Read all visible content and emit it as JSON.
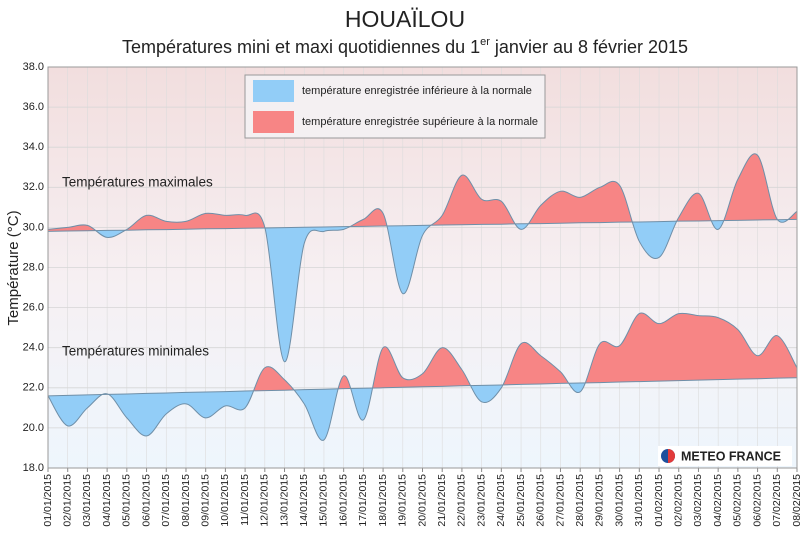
{
  "chart_data": {
    "type": "line",
    "title": "HOUAÏLOU",
    "subtitle_parts": [
      "Températures mini et maxi quotidiennes du 1",
      "er",
      " janvier au 8 février 2015"
    ],
    "y_label": "Température (°C)",
    "categories": [
      "01/01/2015",
      "02/01/2015",
      "03/01/2015",
      "04/01/2015",
      "05/01/2015",
      "06/01/2015",
      "07/01/2015",
      "08/01/2015",
      "09/01/2015",
      "10/01/2015",
      "11/01/2015",
      "12/01/2015",
      "13/01/2015",
      "14/01/2015",
      "15/01/2015",
      "16/01/2015",
      "17/01/2015",
      "18/01/2015",
      "19/01/2015",
      "20/01/2015",
      "21/01/2015",
      "22/01/2015",
      "23/01/2015",
      "24/01/2015",
      "25/01/2015",
      "26/01/2015",
      "27/01/2015",
      "28/01/2015",
      "29/01/2015",
      "30/01/2015",
      "31/01/2015",
      "01/02/2015",
      "02/02/2015",
      "03/02/2015",
      "04/02/2015",
      "05/02/2015",
      "06/02/2015",
      "07/02/2015",
      "08/02/2015"
    ],
    "series": [
      {
        "name": "Températures maximales",
        "color": "#6f8fa8",
        "values": [
          29.9,
          30.0,
          30.1,
          29.5,
          29.9,
          30.6,
          30.3,
          30.3,
          30.7,
          30.6,
          30.6,
          30.0,
          23.3,
          29.2,
          29.8,
          29.9,
          30.4,
          30.7,
          26.7,
          29.6,
          30.6,
          32.6,
          31.4,
          31.3,
          29.9,
          31.1,
          31.8,
          31.5,
          32.0,
          32.1,
          29.3,
          28.5,
          30.5,
          31.7,
          29.9,
          32.4,
          33.6,
          30.4,
          30.8
        ]
      },
      {
        "name": "Températures minimales",
        "color": "#6f8fa8",
        "values": [
          21.6,
          20.1,
          21.0,
          21.7,
          20.5,
          19.6,
          20.7,
          21.2,
          20.5,
          21.1,
          21.0,
          23.0,
          22.4,
          21.2,
          19.4,
          22.6,
          20.4,
          24.0,
          22.5,
          22.7,
          24.0,
          22.9,
          21.3,
          22.0,
          24.2,
          23.6,
          22.8,
          21.8,
          24.2,
          24.1,
          25.7,
          25.2,
          25.7,
          25.6,
          25.5,
          24.9,
          23.6,
          24.6,
          23.0
        ]
      }
    ],
    "normals": [
      {
        "values": [
          29.8,
          29.82,
          29.83,
          29.85,
          29.86,
          29.88,
          29.89,
          29.91,
          29.93,
          29.94,
          29.96,
          29.97,
          29.99,
          30.01,
          30.02,
          30.04,
          30.05,
          30.07,
          30.08,
          30.1,
          30.12,
          30.13,
          30.15,
          30.16,
          30.18,
          30.19,
          30.21,
          30.23,
          30.24,
          30.26,
          30.27,
          30.29,
          30.31,
          30.32,
          30.34,
          30.35,
          30.37,
          30.38,
          30.4
        ]
      },
      {
        "values": [
          21.6,
          21.62,
          21.65,
          21.67,
          21.69,
          21.72,
          21.74,
          21.77,
          21.79,
          21.81,
          21.84,
          21.86,
          21.88,
          21.91,
          21.93,
          21.96,
          21.98,
          22.0,
          22.03,
          22.05,
          22.07,
          22.1,
          22.12,
          22.14,
          22.17,
          22.19,
          22.22,
          22.24,
          22.26,
          22.29,
          22.31,
          22.33,
          22.36,
          22.38,
          22.41,
          22.43,
          22.45,
          22.48,
          22.5
        ]
      }
    ],
    "legend": [
      {
        "label": "température enregistrée inférieure à la normale",
        "color": "#92cdf7"
      },
      {
        "label": "température enregistrée supérieure à la normale",
        "color": "#f78585"
      }
    ],
    "logo": "METEO FRANCE",
    "ylim": [
      18,
      38
    ],
    "yticks": [
      {
        "value": 18,
        "label": "18.0"
      },
      {
        "value": 20,
        "label": "20.0"
      },
      {
        "value": 22,
        "label": "22.0"
      },
      {
        "value": 24,
        "label": "24.0"
      },
      {
        "value": 26,
        "label": "26.0"
      },
      {
        "value": 28,
        "label": "28.0"
      },
      {
        "value": 30,
        "label": "30.0"
      },
      {
        "value": 32,
        "label": "32.0"
      },
      {
        "value": 34,
        "label": "34.0"
      },
      {
        "value": 36,
        "label": "36.0"
      },
      {
        "value": 38,
        "label": "38.0"
      }
    ],
    "grid": true
  }
}
